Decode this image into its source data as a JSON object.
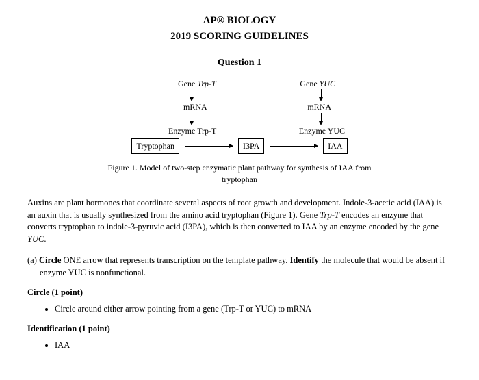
{
  "header": {
    "line1": "AP® BIOLOGY",
    "line2": "2019 SCORING GUIDELINES"
  },
  "question_title": "Question 1",
  "diagram": {
    "gene1_prefix": "Gene ",
    "gene1_name": "Trp-T",
    "gene2_prefix": "Gene ",
    "gene2_name": "YUC",
    "mrna": "mRNA",
    "enzyme1": "Enzyme Trp-T",
    "enzyme2": "Enzyme YUC",
    "box1": "Tryptophan",
    "box2": "I3PA",
    "box3": "IAA"
  },
  "figure_caption": "Figure 1. Model of two-step enzymatic plant pathway for synthesis of IAA from tryptophan",
  "body": {
    "p1_a": "Auxins are plant hormones that coordinate several aspects of root growth and development. Indole-3-acetic acid (IAA) is an auxin that is usually synthesized from the amino acid tryptophan (Figure 1). Gene ",
    "p1_it1": "Trp-T",
    "p1_b": " encodes an enzyme that converts tryptophan to indole-3-pyruvic acid (I3PA), which is then converted to IAA by an enzyme encoded by the gene ",
    "p1_it2": "YUC",
    "p1_c": "."
  },
  "part_a": {
    "label": "(a) ",
    "bold1": "Circle",
    "text1": " ONE arrow that represents transcription on the template pathway. ",
    "bold2": "Identify",
    "text2": " the molecule that would be absent if enzyme YUC is nonfunctional."
  },
  "circle_section": {
    "label": "Circle (1 point)",
    "bullet_a": "Circle around either arrow pointing from a gene (",
    "bullet_it1": "Trp-T",
    "bullet_b": " or ",
    "bullet_it2": "YUC",
    "bullet_c": ") to mRNA"
  },
  "ident_section": {
    "label": "Identification (1 point)",
    "bullet": "IAA"
  }
}
